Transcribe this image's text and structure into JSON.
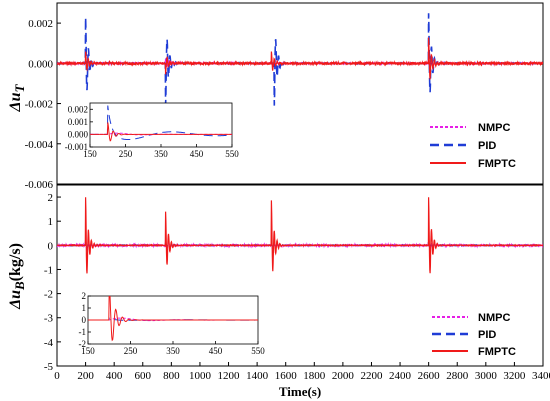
{
  "chart_data": [
    {
      "type": "line",
      "panel": "top",
      "ylabel_main": "Δu",
      "ylabel_sub": "T",
      "xlim": [
        0,
        3400
      ],
      "ylim": [
        -0.006,
        0.003
      ],
      "yticks": [
        -0.006,
        -0.004,
        -0.002,
        0.0,
        0.002
      ],
      "ytick_labels": [
        "-0.006",
        "-0.004",
        "-0.002",
        "0.000",
        "0.002"
      ],
      "series": [
        {
          "name": "NMPC",
          "color": "#e61ee6",
          "dash": "3,2",
          "events": [
            [
              200,
              0.0002
            ],
            [
              760,
              0.0002
            ],
            [
              1500,
              0.0002
            ],
            [
              2600,
              0.0003
            ]
          ],
          "noise": 6e-05
        },
        {
          "name": "PID",
          "color": "#1f3cd6",
          "dash": "9,5",
          "events": [
            [
              200,
              0.0023
            ],
            [
              760,
              -0.0021
            ],
            [
              1520,
              -0.0021
            ],
            [
              2600,
              0.0025
            ]
          ],
          "noise": 3e-05
        },
        {
          "name": "FMPTC",
          "color": "#f01a1a",
          "dash": "",
          "events": [
            [
              200,
              0.0006
            ],
            [
              760,
              -0.0005
            ],
            [
              1500,
              0.0006
            ],
            [
              2600,
              0.0013
            ]
          ],
          "noise": 0.00012
        }
      ],
      "inset": {
        "xlim": [
          150,
          550
        ],
        "ylim": [
          -0.001,
          0.0025
        ],
        "xticks": [
          150,
          250,
          350,
          450,
          550
        ],
        "xtick_labels": [
          "150",
          "250",
          "350",
          "450",
          "550"
        ],
        "yticks": [
          -0.001,
          0.0,
          0.001,
          0.002
        ],
        "ytick_labels": [
          "-0.001",
          "0.000",
          "0.001",
          "0.002"
        ]
      }
    },
    {
      "type": "line",
      "panel": "bottom",
      "ylabel_main": "Δu",
      "ylabel_sub": "B",
      "ylabel_unit": "(kg/s)",
      "xlabel": "Time(s)",
      "xlim": [
        0,
        3400
      ],
      "xticks": [
        0,
        200,
        400,
        600,
        800,
        1000,
        1200,
        1400,
        1600,
        1800,
        2000,
        2200,
        2400,
        2600,
        2800,
        3000,
        3200,
        3400
      ],
      "xtick_labels": [
        "0",
        "200",
        "400",
        "600",
        "800",
        "1000",
        "1200",
        "1400",
        "1600",
        "1800",
        "2000",
        "2200",
        "2400",
        "2600",
        "2800",
        "3000",
        "3200",
        "3400"
      ],
      "ylim": [
        -5,
        2.5
      ],
      "yticks": [
        -5,
        -4,
        -3,
        -2,
        -1,
        0,
        1,
        2
      ],
      "ytick_labels": [
        "-5",
        "-4",
        "-3",
        "-2",
        "-1",
        "0",
        "1",
        "2"
      ],
      "series": [
        {
          "name": "NMPC",
          "color": "#e61ee6",
          "dash": "3,2",
          "events": [
            [
              200,
              0.3
            ],
            [
              760,
              0.25
            ],
            [
              1500,
              0.25
            ],
            [
              2600,
              0.3
            ]
          ],
          "noise": 0.08
        },
        {
          "name": "PID",
          "color": "#1f3cd6",
          "dash": "9,5",
          "events": [
            [
              200,
              0.15
            ],
            [
              760,
              0.1
            ],
            [
              1500,
              0.1
            ],
            [
              2600,
              0.15
            ]
          ],
          "noise": 0.02
        },
        {
          "name": "FMPTC",
          "color": "#f01a1a",
          "dash": "",
          "events": [
            [
              200,
              2.0
            ],
            [
              760,
              1.4
            ],
            [
              1500,
              1.85
            ],
            [
              2600,
              2.0
            ]
          ],
          "noise": 0.03
        }
      ],
      "inset": {
        "xlim": [
          150,
          550
        ],
        "ylim": [
          -2,
          2
        ],
        "xticks": [
          150,
          250,
          350,
          450,
          550
        ],
        "xtick_labels": [
          "150",
          "250",
          "350",
          "450",
          "550"
        ],
        "yticks": [
          -2,
          -1,
          0,
          1,
          2
        ],
        "ytick_labels": [
          "-2",
          "-1",
          "0",
          "1",
          "2"
        ]
      }
    }
  ]
}
